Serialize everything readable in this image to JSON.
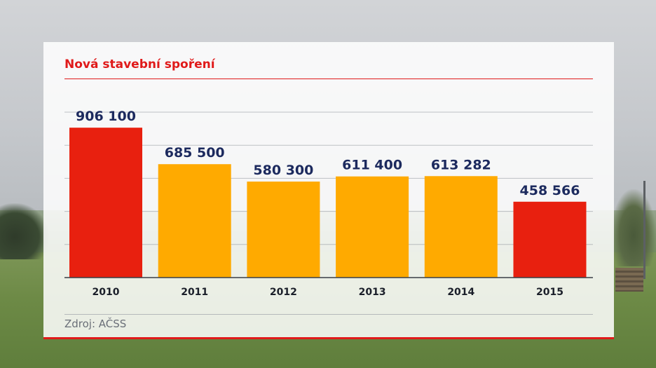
{
  "chart_data": {
    "type": "bar",
    "title": "Nová stavební spoření",
    "categories": [
      "2010",
      "2011",
      "2012",
      "2013",
      "2014",
      "2015"
    ],
    "values": [
      906100,
      685500,
      580300,
      611400,
      613282,
      458566
    ],
    "value_labels": [
      "906 100",
      "685 500",
      "580 300",
      "611 400",
      "613 282",
      "458 566"
    ],
    "bar_colors": [
      "#e8200f",
      "#ffaa00",
      "#ffaa00",
      "#ffaa00",
      "#ffaa00",
      "#e8200f"
    ],
    "label_color": "#1c2a5e",
    "ylim": [
      0,
      1000000
    ],
    "grid": true,
    "xlabel": "",
    "ylabel": ""
  },
  "source": "Zdroj: AČSS"
}
